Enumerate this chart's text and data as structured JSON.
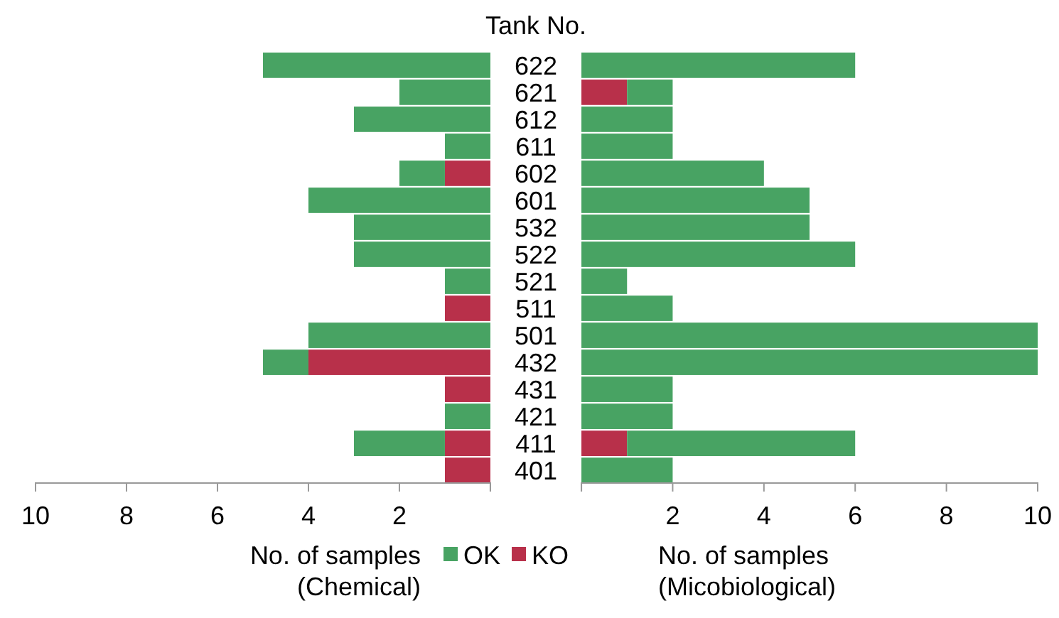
{
  "chart_data": [
    {
      "type": "bar",
      "orientation": "horizontal",
      "stacked": true,
      "title": "Tank No.",
      "xlabel": "No. of samples\n(Chemical)",
      "categories": [
        "622",
        "621",
        "612",
        "611",
        "602",
        "601",
        "532",
        "522",
        "521",
        "511",
        "501",
        "432",
        "431",
        "421",
        "411",
        "401"
      ],
      "series": [
        {
          "name": "KO",
          "color": "#b8304a",
          "values": [
            0,
            0,
            0,
            0,
            1,
            0,
            0,
            0,
            0,
            1,
            0,
            4,
            1,
            0,
            1,
            1
          ]
        },
        {
          "name": "OK",
          "color": "#48a363",
          "values": [
            5,
            2,
            3,
            1,
            1,
            4,
            3,
            3,
            1,
            0,
            4,
            1,
            0,
            1,
            2,
            0
          ]
        }
      ],
      "xlim": [
        10,
        0
      ],
      "xticks": [
        10,
        8,
        6,
        4,
        2,
        {
          "value": 0,
          "label": null
        }
      ],
      "legend": "bottom"
    },
    {
      "type": "bar",
      "orientation": "horizontal",
      "stacked": true,
      "xlabel": "No. of samples\n(Micobiological)",
      "categories": [
        "622",
        "621",
        "612",
        "611",
        "602",
        "601",
        "532",
        "522",
        "521",
        "511",
        "501",
        "432",
        "431",
        "421",
        "411",
        "401"
      ],
      "series": [
        {
          "color": "#b8304a",
          "values": [
            0,
            1,
            0,
            0,
            0,
            0,
            0,
            0,
            0,
            0,
            0,
            0,
            0,
            0,
            1,
            0
          ]
        },
        {
          "color": "#48a363",
          "values": [
            6,
            1,
            2,
            2,
            4,
            5,
            5,
            6,
            1,
            2,
            10,
            10,
            2,
            2,
            5,
            2
          ]
        }
      ],
      "xlim": [
        0,
        10
      ],
      "xticks": [
        {
          "value": 0,
          "label": null
        },
        2,
        4,
        6,
        8,
        10
      ],
      "tick_labels": "x"
    }
  ]
}
